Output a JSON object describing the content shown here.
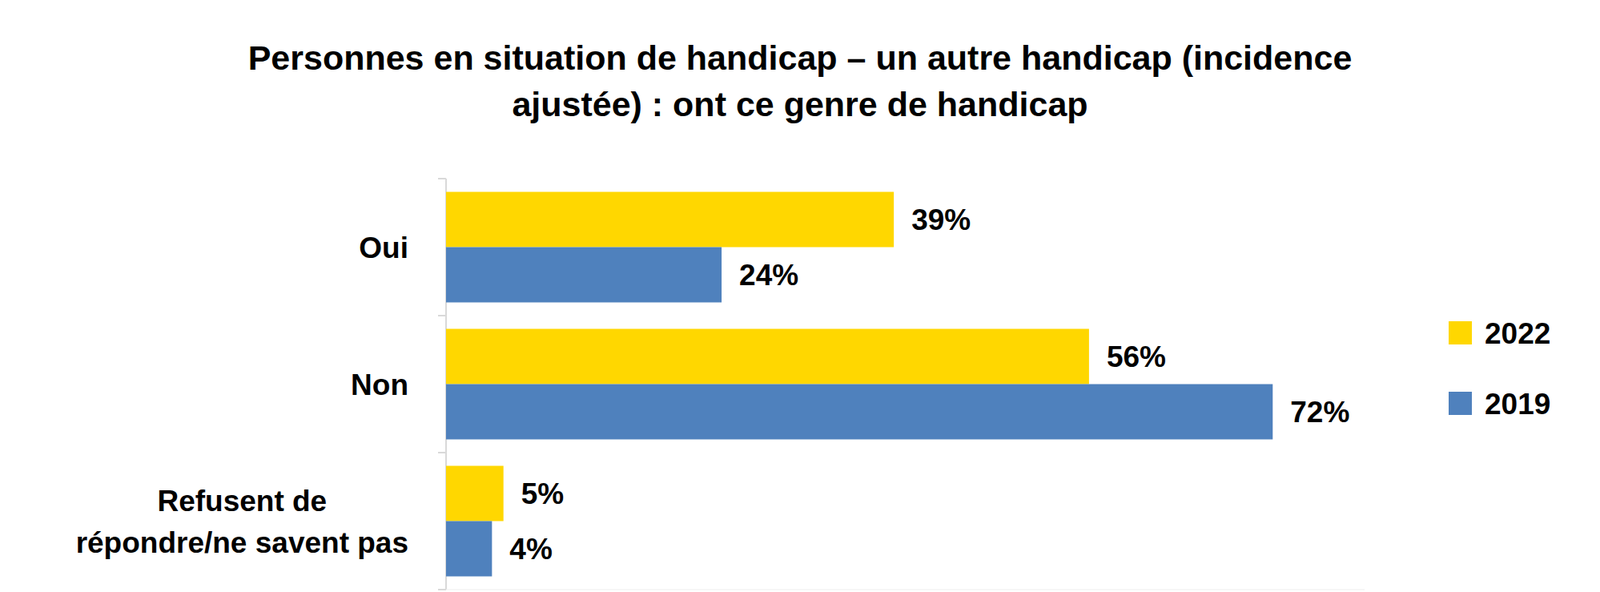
{
  "chart_data": {
    "type": "bar",
    "orientation": "horizontal",
    "title": "Personnes en situation de handicap – un autre handicap (incidence ajustée) : ont ce genre de handicap",
    "categories": [
      "Oui",
      "Non",
      "Refusent de répondre/ne savent pas"
    ],
    "series": [
      {
        "name": "2022",
        "color": "#FFD700",
        "values": [
          39,
          56,
          5
        ],
        "value_labels": [
          "39%",
          "56%",
          "5%"
        ]
      },
      {
        "name": "2019",
        "color": "#4F81BD",
        "values": [
          24,
          72,
          4
        ],
        "value_labels": [
          "24%",
          "72%",
          "4%"
        ]
      }
    ],
    "xlim": [
      0,
      80
    ],
    "data_labels": true,
    "tick_labels": "y",
    "legend": "right",
    "grid": false
  }
}
